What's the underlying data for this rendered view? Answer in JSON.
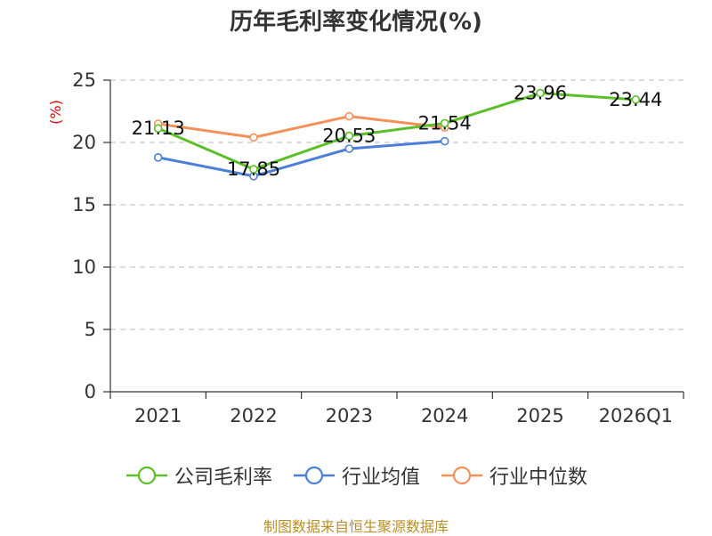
{
  "title": "历年毛利率变化情况(%)",
  "source_note": "制图数据来自恒生聚源数据库",
  "colors": {
    "company": "#5cbf2a",
    "industry_avg": "#4b7fd8",
    "industry_median": "#f4915a",
    "grid": "#c8c8c8",
    "axis": "#333333",
    "ylabel": "#e00000",
    "source": "#b8902a"
  },
  "chart_data": {
    "type": "line",
    "title": "历年毛利率变化情况(%)",
    "ylabel": "(%)",
    "xlabel": "",
    "categories": [
      "2021",
      "2022",
      "2023",
      "2024",
      "2025",
      "2026Q1"
    ],
    "ylim": [
      0,
      25
    ],
    "yticks": [
      0,
      5,
      10,
      15,
      20,
      25
    ],
    "grid": "horizontal-dashed",
    "legend_position": "bottom",
    "series": [
      {
        "name": "公司毛利率",
        "color_key": "company",
        "values": [
          21.13,
          17.85,
          20.53,
          21.54,
          23.96,
          23.44
        ],
        "labels": [
          "21.13",
          "17.85",
          "20.53",
          "21.54",
          "23.96",
          "23.44"
        ]
      },
      {
        "name": "行业均值",
        "color_key": "industry_avg",
        "values": [
          18.8,
          17.3,
          19.5,
          20.1,
          null,
          null
        ],
        "labels": null
      },
      {
        "name": "行业中位数",
        "color_key": "industry_median",
        "values": [
          21.5,
          20.4,
          22.1,
          21.2,
          null,
          null
        ],
        "labels": null
      }
    ]
  }
}
